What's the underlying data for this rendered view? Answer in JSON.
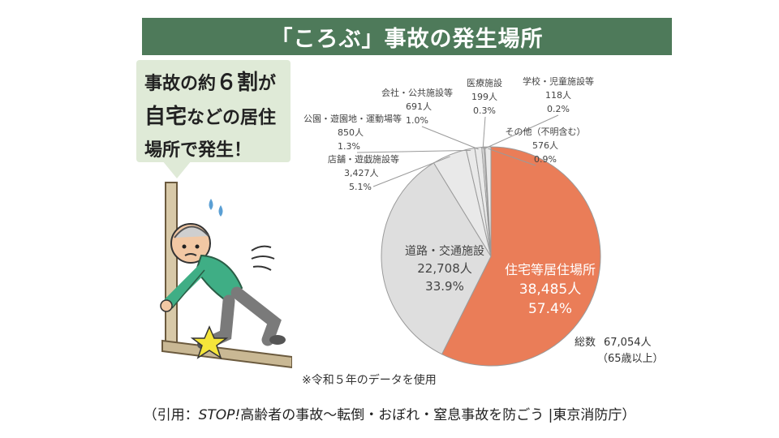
{
  "colors": {
    "banner_bg": "#4e7a5a",
    "callout_bg": "#dfead7",
    "accent_slice": "#ea7d58",
    "road_slice": "#dedede",
    "other_slices": "#e9e9e9",
    "slice_edge": "#9a9a9a"
  },
  "title": "「ころぶ」事故の発生場所",
  "callout": {
    "line1_a": "事故の約",
    "line1_num": "６",
    "line1_b": "割",
    "line1_c": "が",
    "line2_a": "自宅",
    "line2_b": "などの居住",
    "line3": "場所で発生！"
  },
  "illustration": {
    "icons": [
      "elderly-man-falling-icon",
      "impact-star-icon",
      "sweat-drops-icon",
      "motion-lines-icon"
    ]
  },
  "chart_data": {
    "type": "pie",
    "title": "",
    "unit": "人",
    "total": {
      "label": "総数",
      "value": "67,054人",
      "note": "（65歳以上）"
    },
    "slices": [
      {
        "name": "住宅等居住場所",
        "count": 38485,
        "count_text": "38,485人",
        "pct": 57.4,
        "pct_text": "57.4%"
      },
      {
        "name": "道路・交通施設",
        "count": 22708,
        "count_text": "22,708人",
        "pct": 33.9,
        "pct_text": "33.9%"
      },
      {
        "name": "店舗・遊戯施設等",
        "count": 3427,
        "count_text": "3,427人",
        "pct": 5.1,
        "pct_text": "5.1%"
      },
      {
        "name": "公園・遊園地・運動場等",
        "count": 850,
        "count_text": "850人",
        "pct": 1.3,
        "pct_text": "1.3%"
      },
      {
        "name": "会社・公共施設等",
        "count": 691,
        "count_text": "691人",
        "pct": 1.0,
        "pct_text": "1.0%"
      },
      {
        "name": "医療施設",
        "count": 199,
        "count_text": "199人",
        "pct": 0.3,
        "pct_text": "0.3%"
      },
      {
        "name": "学校・児童施設等",
        "count": 118,
        "count_text": "118人",
        "pct": 0.2,
        "pct_text": "0.2%"
      },
      {
        "name": "その他（不明含む）",
        "count": 576,
        "count_text": "576人",
        "pct": 0.9,
        "pct_text": "0.9%"
      }
    ]
  },
  "note": "※令和５年のデータを使用",
  "citation": {
    "prefix": "（引用：",
    "italic": "STOP!",
    "body": "高齢者の事故～転倒・おぼれ・窒息事故を防ごう |東京消防庁",
    "suffix": "）"
  }
}
